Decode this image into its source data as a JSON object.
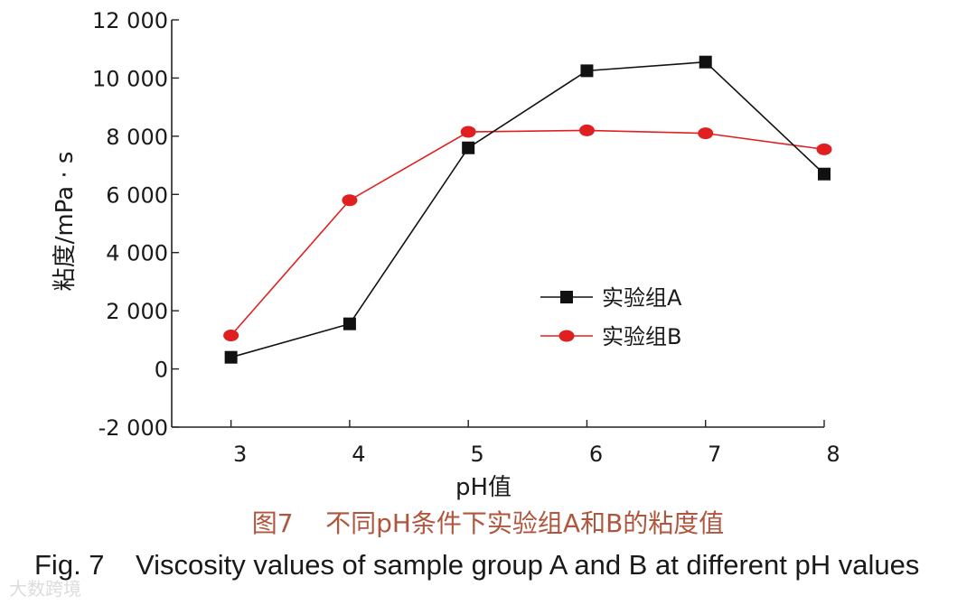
{
  "chart_data": {
    "type": "line",
    "x": [
      3,
      4,
      5,
      6,
      7,
      8
    ],
    "series": [
      {
        "name": "实验组A",
        "values": [
          400,
          1550,
          7600,
          10250,
          10550,
          6700
        ],
        "color": "#111111",
        "marker": "square"
      },
      {
        "name": "实验组B",
        "values": [
          1150,
          5800,
          8150,
          8200,
          8100,
          7550
        ],
        "color": "#e02020",
        "marker": "circle"
      }
    ],
    "xlabel": "pH值",
    "ylabel": "粘度/mPa · s",
    "xlim": [
      2.5,
      8
    ],
    "ylim": [
      -2000,
      12000
    ],
    "x_ticks": [
      3,
      4,
      5,
      6,
      7,
      8
    ],
    "y_ticks": [
      -2000,
      0,
      2000,
      4000,
      6000,
      8000,
      10000,
      12000
    ],
    "y_tick_labels": [
      "-2 000",
      "0",
      "2 000",
      "4 000",
      "6 000",
      "8 000",
      "10 000",
      "12 000"
    ],
    "grid": false,
    "legend_position": "center-right"
  },
  "caption": {
    "cn": "图7    不同pH条件下实验组A和B的粘度值",
    "en": "Fig. 7    Viscosity values of sample group A and B at different pH values"
  },
  "watermark": "大数跨境"
}
